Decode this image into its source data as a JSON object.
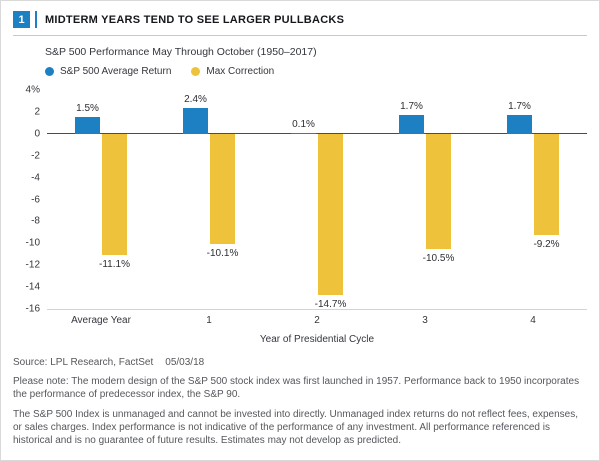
{
  "header": {
    "figure_number": "1",
    "title": "MIDTERM YEARS TEND TO SEE LARGER PULLBACKS"
  },
  "colors": {
    "accent_blue": "#1c80c3",
    "accent_gold": "#eec33b",
    "zero_line": "#4a4b4e"
  },
  "chart_data": {
    "type": "bar",
    "title": "S&P 500 Performance May Through October (1950–2017)",
    "categories": [
      "Average Year",
      "1",
      "2",
      "3",
      "4"
    ],
    "series": [
      {
        "name": "S&P 500 Average Return",
        "color": "#1c80c3",
        "values": [
          1.5,
          2.4,
          0.1,
          1.7,
          1.7
        ],
        "labels": [
          "1.5%",
          "2.4%",
          "0.1%",
          "1.7%",
          "1.7%"
        ]
      },
      {
        "name": "Max Correction",
        "color": "#eec33b",
        "values": [
          -11.1,
          -10.1,
          -14.7,
          -10.5,
          -9.2
        ],
        "labels": [
          "-11.1%",
          "-10.1%",
          "-14.7%",
          "-10.5%",
          "-9.2%"
        ]
      }
    ],
    "xlabel": "Year of Presidential Cycle",
    "ylabel": "",
    "ylim": [
      -16,
      4
    ],
    "yticks": [
      4,
      2,
      0,
      -2,
      -4,
      -6,
      -8,
      -10,
      -12,
      -14,
      -16
    ],
    "ytick_labels": [
      "4%",
      "2",
      "0",
      "-2",
      "-4",
      "-6",
      "-8",
      "-10",
      "-12",
      "-14",
      "-16"
    ],
    "grid": false,
    "legend_position": "top-left"
  },
  "footer": {
    "source_label": "Source: LPL Research, FactSet",
    "source_date": "05/03/18",
    "note1": "Please note: The modern design of the S&P 500 stock index was first launched in 1957. Performance back to 1950 incorporates the performance of predecessor index, the S&P 90.",
    "note2": "The S&P 500 Index is unmanaged and cannot be invested into directly. Unmanaged index returns do not reflect fees, expenses, or sales charges. Index performance is not indicative of the performance of any investment. All performance referenced is historical and is no guarantee of future results. Estimates may not develop as predicted."
  }
}
